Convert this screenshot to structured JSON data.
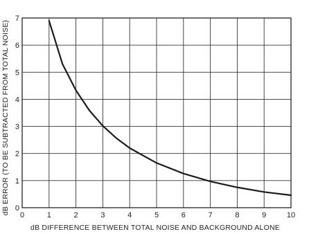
{
  "chart_data": {
    "type": "line",
    "title": "",
    "xlabel": "dB DIFFERENCE  BETWEEN  TOTAL  NOISE  AND  BACKGROUND  ALONE",
    "ylabel": "dB  ERROR  (TO BE  SUBTRACTED  FROM  TOTAL  NOISE)",
    "xlim": [
      0,
      10
    ],
    "ylim": [
      0,
      7
    ],
    "grid": true,
    "x_ticks": [
      "0",
      "1",
      "2",
      "3",
      "4",
      "5",
      "6",
      "7",
      "8",
      "9",
      "10"
    ],
    "y_ticks": [
      "0",
      "1",
      "2",
      "3",
      "4",
      "5",
      "6",
      "7"
    ],
    "series": [
      {
        "x": [
          1,
          1.5,
          2,
          2.5,
          3,
          3.5,
          4,
          5,
          6,
          7,
          8,
          9,
          10
        ],
        "y": [
          6.9,
          5.3,
          4.33,
          3.59,
          3.02,
          2.57,
          2.2,
          1.65,
          1.26,
          0.97,
          0.75,
          0.58,
          0.46
        ]
      }
    ],
    "colors": {
      "line": "#1a1a1a",
      "grid": "#333333",
      "background": "#ffffff"
    }
  }
}
